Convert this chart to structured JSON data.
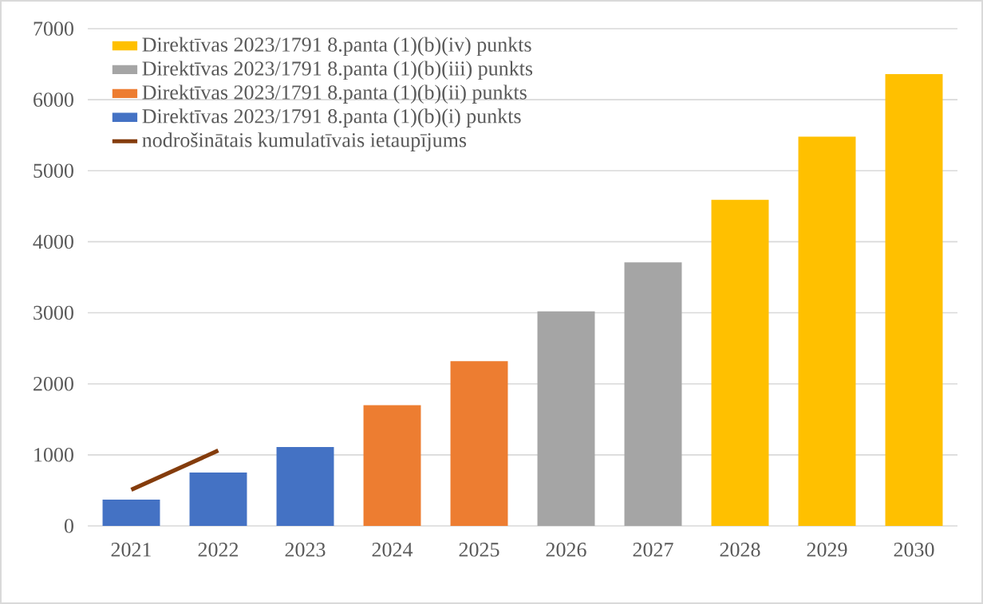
{
  "chart_data": {
    "type": "bar",
    "categories": [
      "2021",
      "2022",
      "2023",
      "2024",
      "2025",
      "2026",
      "2027",
      "2028",
      "2029",
      "2030"
    ],
    "series": [
      {
        "name": "Direktīvas 2023/1791 8.panta (1)(b)(iv) punkts",
        "color": "#ffc000",
        "values": [
          null,
          null,
          null,
          null,
          null,
          null,
          null,
          4590,
          5480,
          6360
        ]
      },
      {
        "name": "Direktīvas 2023/1791 8.panta (1)(b)(iii) punkts",
        "color": "#a5a5a5",
        "values": [
          null,
          null,
          null,
          null,
          null,
          3020,
          3710,
          null,
          null,
          null
        ]
      },
      {
        "name": "Direktīvas 2023/1791 8.panta (1)(b)(ii) punkts",
        "color": "#ed7d31",
        "values": [
          null,
          null,
          null,
          1700,
          2320,
          null,
          null,
          null,
          null,
          null
        ]
      },
      {
        "name": "Direktīvas 2023/1791 8.panta (1)(b)(i) punkts",
        "color": "#4472c4",
        "values": [
          370,
          750,
          1110,
          null,
          null,
          null,
          null,
          null,
          null,
          null
        ]
      },
      {
        "name": "nodrošinātais kumulatīvais ietaupījums",
        "color": "#843c0c",
        "type": "line",
        "values": [
          510,
          1060,
          null,
          null,
          null,
          null,
          null,
          null,
          null,
          null
        ]
      }
    ],
    "ylim": [
      0,
      7000
    ],
    "yticks": [
      0,
      1000,
      2000,
      3000,
      4000,
      5000,
      6000,
      7000
    ],
    "grid": "y",
    "legend": "top left"
  }
}
